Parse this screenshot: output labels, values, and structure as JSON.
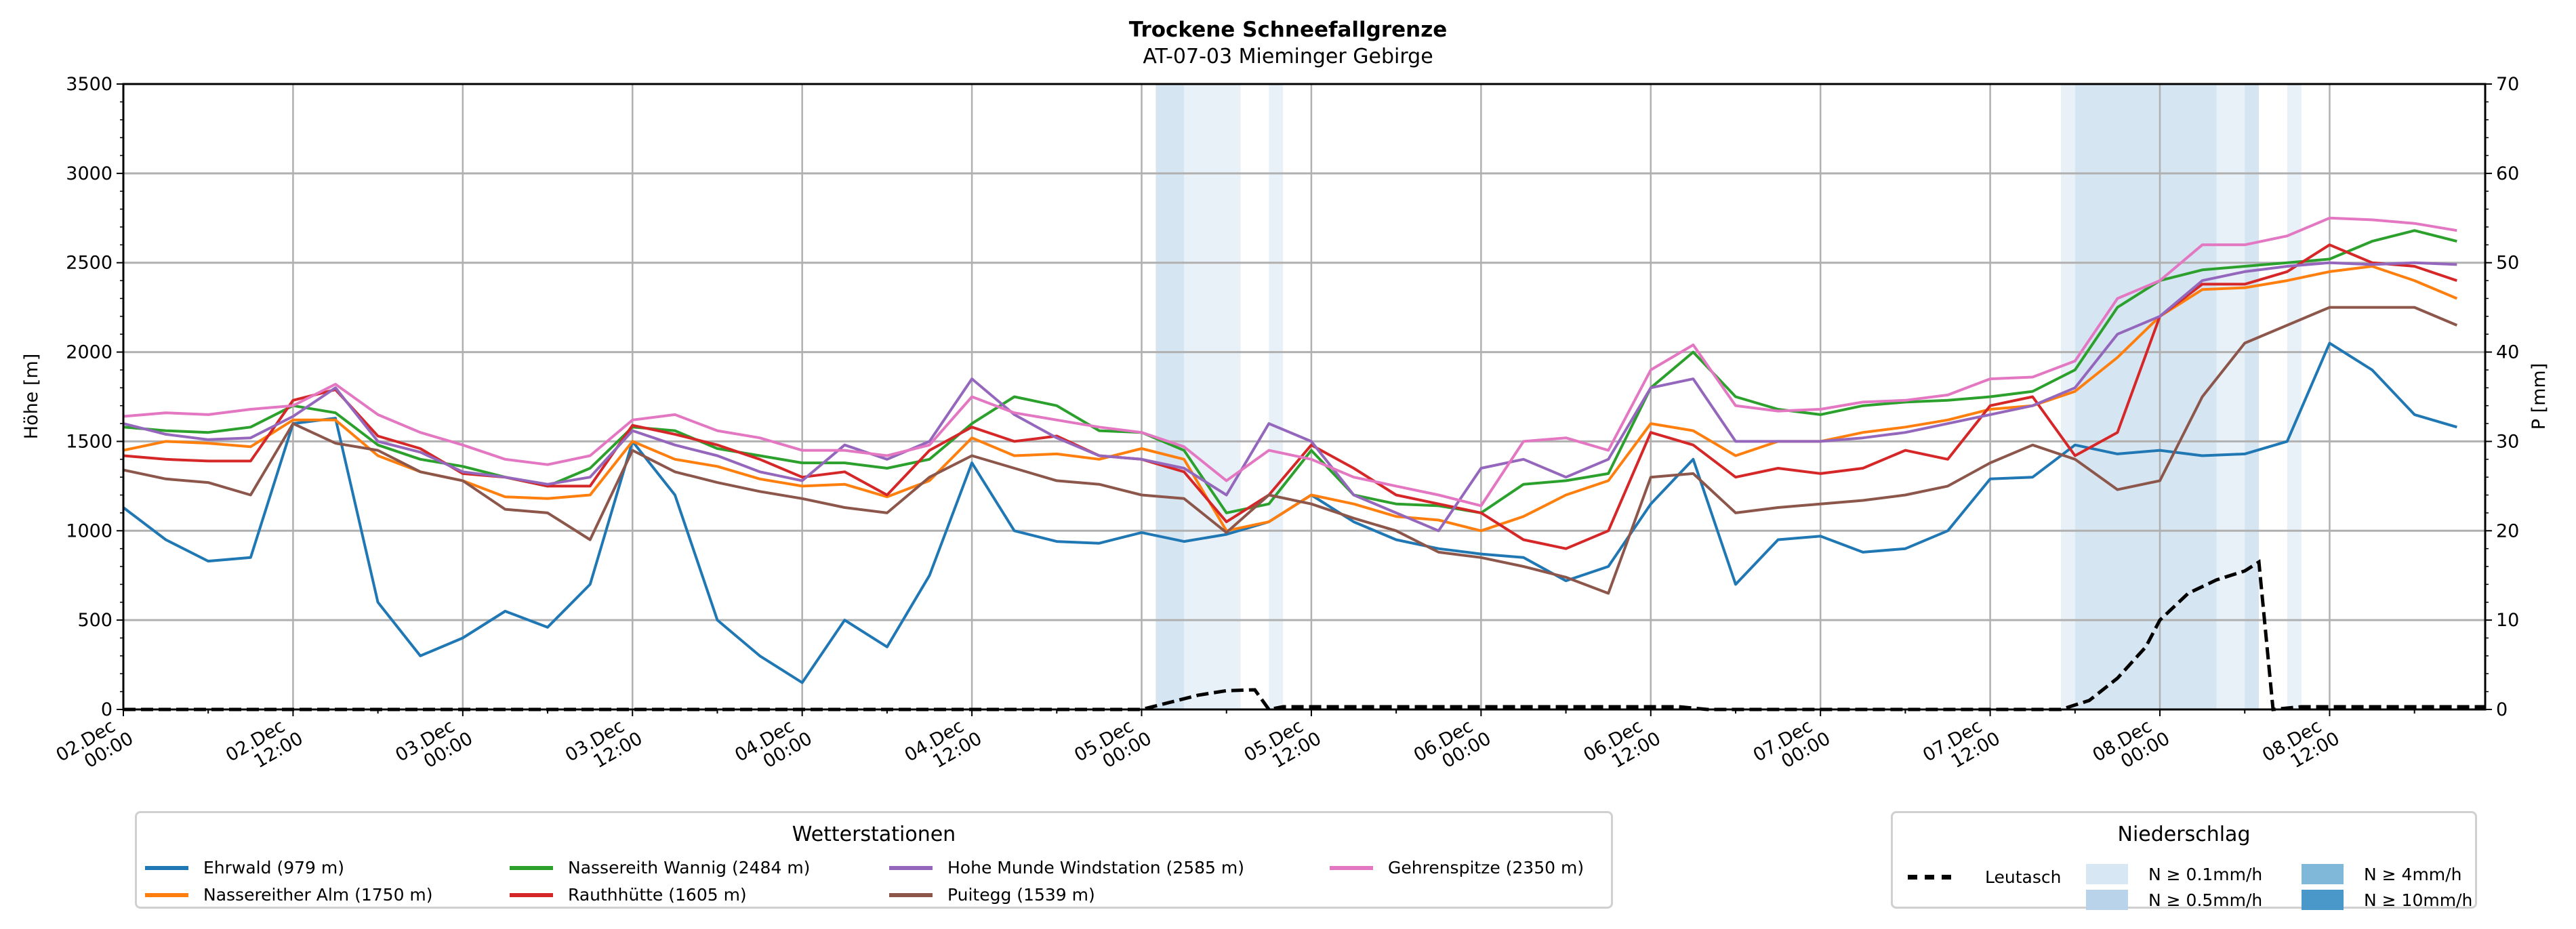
{
  "chart_data": {
    "type": "line",
    "title": "Trockene Schneefallgrenze",
    "subtitle": "AT-07-03 Mieminger Gebirge",
    "ylabel": "Höhe [m]",
    "ylabel_right": "P [mm]",
    "ylim": [
      0,
      3500
    ],
    "ylim_right": [
      0,
      70
    ],
    "yticks": [
      "0",
      "500",
      "1000",
      "1500",
      "2000",
      "2500",
      "3000",
      "3500"
    ],
    "yticks_right": [
      "0",
      "10",
      "20",
      "30",
      "40",
      "50",
      "60",
      "70"
    ],
    "x_unit": "hours since 02.Dec 00:00",
    "xlim": [
      0,
      167
    ],
    "step_hours": 3,
    "xticks": [
      {
        "h": 0,
        "l1": "02.Dec",
        "l2": "00:00"
      },
      {
        "h": 12,
        "l1": "02.Dec",
        "l2": "12:00"
      },
      {
        "h": 24,
        "l1": "03.Dec",
        "l2": "00:00"
      },
      {
        "h": 36,
        "l1": "03.Dec",
        "l2": "12:00"
      },
      {
        "h": 48,
        "l1": "04.Dec",
        "l2": "00:00"
      },
      {
        "h": 60,
        "l1": "04.Dec",
        "l2": "12:00"
      },
      {
        "h": 72,
        "l1": "05.Dec",
        "l2": "00:00"
      },
      {
        "h": 84,
        "l1": "05.Dec",
        "l2": "12:00"
      },
      {
        "h": 96,
        "l1": "06.Dec",
        "l2": "00:00"
      },
      {
        "h": 108,
        "l1": "06.Dec",
        "l2": "12:00"
      },
      {
        "h": 120,
        "l1": "07.Dec",
        "l2": "00:00"
      },
      {
        "h": 132,
        "l1": "07.Dec",
        "l2": "12:00"
      },
      {
        "h": 144,
        "l1": "08.Dec",
        "l2": "00:00"
      },
      {
        "h": 156,
        "l1": "08.Dec",
        "l2": "12:00"
      }
    ],
    "grid": true,
    "legend_stations": {
      "title": "Wetterstationen",
      "placement": "bottom-left"
    },
    "series": [
      {
        "name": "Ehrwald (979 m)",
        "color": "#1f77b4",
        "values": [
          1130,
          950,
          830,
          850,
          1600,
          1630,
          600,
          300,
          400,
          550,
          460,
          700,
          1500,
          1200,
          500,
          300,
          150,
          500,
          350,
          750,
          1380,
          1000,
          940,
          930,
          990,
          940,
          980,
          1050,
          1200,
          1050,
          950,
          900,
          870,
          850,
          720,
          800,
          1150,
          1400,
          700,
          950,
          970,
          880,
          900,
          1000,
          1290,
          1300,
          1480,
          1430,
          1450,
          1420,
          1430,
          1500,
          2050,
          1900,
          1650,
          1580
        ]
      },
      {
        "name": "Nassereither Alm (1750 m)",
        "color": "#ff7f0e",
        "values": [
          1450,
          1500,
          1490,
          1470,
          1620,
          1620,
          1420,
          1330,
          1280,
          1190,
          1180,
          1200,
          1500,
          1400,
          1360,
          1290,
          1250,
          1260,
          1190,
          1280,
          1520,
          1420,
          1430,
          1400,
          1460,
          1400,
          1000,
          1050,
          1200,
          1150,
          1080,
          1060,
          1000,
          1080,
          1200,
          1280,
          1600,
          1560,
          1420,
          1500,
          1500,
          1550,
          1580,
          1620,
          1680,
          1700,
          1780,
          1970,
          2200,
          2350,
          2360,
          2400,
          2450,
          2480,
          2400,
          2300
        ]
      },
      {
        "name": "Nassereith Wannig (2484 m)",
        "color": "#2ca02c",
        "values": [
          1580,
          1560,
          1550,
          1580,
          1700,
          1660,
          1480,
          1400,
          1360,
          1300,
          1250,
          1350,
          1580,
          1560,
          1460,
          1420,
          1380,
          1380,
          1350,
          1400,
          1600,
          1750,
          1700,
          1560,
          1550,
          1450,
          1100,
          1150,
          1450,
          1200,
          1150,
          1140,
          1100,
          1260,
          1280,
          1320,
          1800,
          2000,
          1750,
          1680,
          1650,
          1700,
          1720,
          1730,
          1750,
          1780,
          1900,
          2250,
          2400,
          2460,
          2480,
          2500,
          2520,
          2620,
          2680,
          2620
        ]
      },
      {
        "name": "Rauthhütte (1605 m)",
        "color": "#d62728",
        "values": [
          1420,
          1400,
          1390,
          1390,
          1730,
          1790,
          1530,
          1460,
          1320,
          1300,
          1250,
          1250,
          1590,
          1540,
          1480,
          1400,
          1300,
          1330,
          1200,
          1450,
          1580,
          1500,
          1530,
          1420,
          1400,
          1330,
          1050,
          1200,
          1480,
          1350,
          1200,
          1150,
          1100,
          950,
          900,
          1000,
          1550,
          1480,
          1300,
          1350,
          1320,
          1350,
          1450,
          1400,
          1700,
          1750,
          1420,
          1550,
          2200,
          2380,
          2380,
          2450,
          2600,
          2500,
          2480,
          2400
        ]
      },
      {
        "name": "Hohe Munde Windstation (2585 m)",
        "color": "#9467bd",
        "values": [
          1600,
          1540,
          1510,
          1520,
          1640,
          1800,
          1500,
          1440,
          1330,
          1300,
          1260,
          1300,
          1560,
          1480,
          1420,
          1330,
          1280,
          1480,
          1400,
          1500,
          1850,
          1650,
          1520,
          1420,
          1400,
          1350,
          1200,
          1600,
          1500,
          1200,
          1100,
          1000,
          1350,
          1400,
          1300,
          1400,
          1800,
          1850,
          1500,
          1500,
          1500,
          1520,
          1550,
          1600,
          1650,
          1700,
          1800,
          2100,
          2200,
          2400,
          2450,
          2480,
          2500,
          2490,
          2500,
          2490
        ]
      },
      {
        "name": "Puitegg (1539 m)",
        "color": "#8c564b",
        "values": [
          1340,
          1290,
          1270,
          1200,
          1600,
          1490,
          1450,
          1330,
          1280,
          1120,
          1100,
          950,
          1450,
          1330,
          1270,
          1220,
          1180,
          1130,
          1100,
          1300,
          1420,
          1350,
          1280,
          1260,
          1200,
          1180,
          990,
          1200,
          1150,
          1070,
          1000,
          880,
          850,
          800,
          740,
          650,
          1300,
          1320,
          1100,
          1130,
          1150,
          1170,
          1200,
          1250,
          1380,
          1480,
          1400,
          1230,
          1280,
          1750,
          2050,
          2150,
          2250,
          2250,
          2250,
          2150
        ]
      },
      {
        "name": "Gehrenspitze (2350 m)",
        "color": "#e377c2",
        "values": [
          1640,
          1660,
          1650,
          1680,
          1700,
          1820,
          1650,
          1550,
          1480,
          1400,
          1370,
          1420,
          1620,
          1650,
          1560,
          1520,
          1450,
          1450,
          1420,
          1480,
          1750,
          1660,
          1620,
          1580,
          1550,
          1470,
          1280,
          1450,
          1400,
          1300,
          1250,
          1200,
          1140,
          1500,
          1520,
          1450,
          1900,
          2040,
          1700,
          1670,
          1680,
          1720,
          1730,
          1760,
          1850,
          1860,
          1950,
          2300,
          2400,
          2600,
          2600,
          2650,
          2750,
          2740,
          2720,
          2680
        ]
      }
    ],
    "precip": {
      "title": "Niederschlag",
      "placement": "bottom-right",
      "station": "Leutasch",
      "color": "#000000",
      "points": [
        [
          0,
          0
        ],
        [
          72,
          0
        ],
        [
          74,
          0.8
        ],
        [
          76,
          1.6
        ],
        [
          78,
          2.1
        ],
        [
          80,
          2.2
        ],
        [
          81,
          0
        ],
        [
          82,
          0.3
        ],
        [
          110,
          0.3
        ],
        [
          112,
          0
        ],
        [
          137,
          0
        ],
        [
          139,
          1
        ],
        [
          141,
          3.5
        ],
        [
          143,
          7
        ],
        [
          144,
          10
        ],
        [
          146,
          13
        ],
        [
          148,
          14.5
        ],
        [
          150,
          15.5
        ],
        [
          151,
          16.5
        ],
        [
          152,
          0
        ],
        [
          154,
          0.3
        ],
        [
          167,
          0.3
        ]
      ],
      "classes": [
        {
          "label": "N ≥ 0.1mm/h",
          "color": "#d8e7f4"
        },
        {
          "label": "N ≥ 0.5mm/h",
          "color": "#b9d4ea"
        },
        {
          "label": "N ≥ 4mm/h",
          "color": "#80b8da"
        },
        {
          "label": "N ≥ 10mm/h",
          "color": "#4a97c9"
        }
      ],
      "bands": [
        {
          "from": 73,
          "to": 75,
          "class": 1
        },
        {
          "from": 75,
          "to": 79,
          "class": 0
        },
        {
          "from": 81,
          "to": 82,
          "class": 0
        },
        {
          "from": 137,
          "to": 138,
          "class": 0
        },
        {
          "from": 138,
          "to": 148,
          "class": 1
        },
        {
          "from": 148,
          "to": 150,
          "class": 0
        },
        {
          "from": 150,
          "to": 151,
          "class": 1
        },
        {
          "from": 153,
          "to": 154,
          "class": 0
        }
      ]
    }
  }
}
